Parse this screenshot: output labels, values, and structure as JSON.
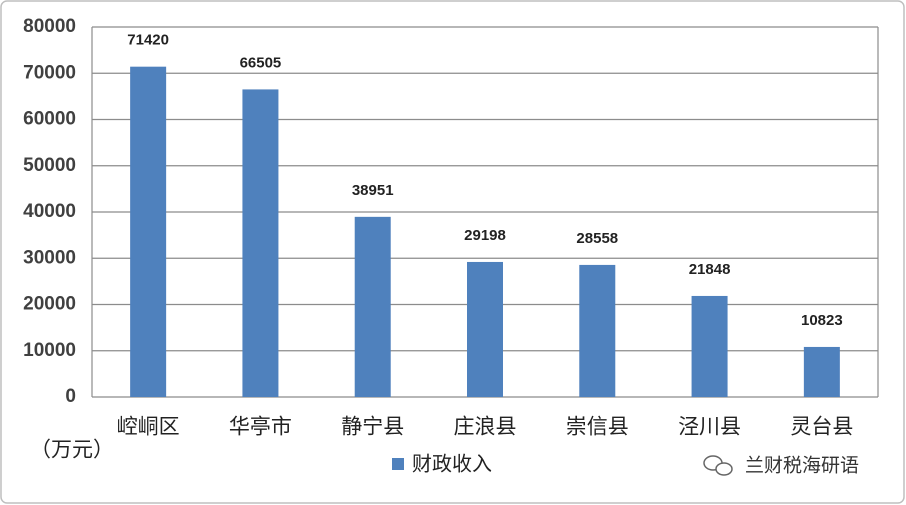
{
  "chart_data": {
    "type": "bar",
    "unit_label": "（万元）",
    "watermark": "兰财税海研语",
    "categories": [
      "崆峒区",
      "华亭市",
      "静宁县",
      "庄浪县",
      "崇信县",
      "泾川县",
      "灵台县"
    ],
    "series": [
      {
        "name": "财政收入",
        "color": "#4f81bd",
        "values": [
          71420,
          66505,
          38951,
          29198,
          28558,
          21848,
          10823
        ]
      }
    ],
    "ylim": [
      0,
      80000
    ],
    "yticks": [
      0,
      10000,
      20000,
      30000,
      40000,
      50000,
      60000,
      70000,
      80000
    ],
    "grid": true,
    "legend": "bottom"
  }
}
